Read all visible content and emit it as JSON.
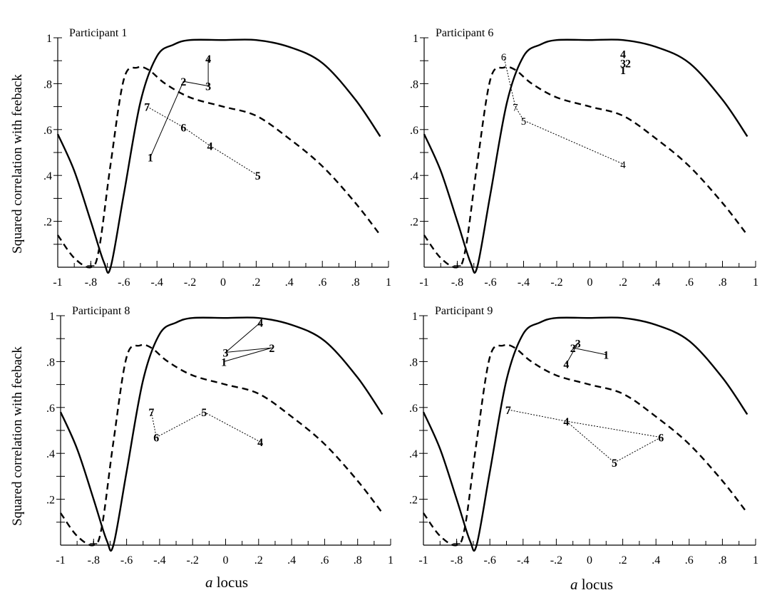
{
  "y_axis_label": "Squared correlation with feeback",
  "x_axis_label_italic": "a",
  "x_axis_label_rest": " locus",
  "chart_data": [
    {
      "type": "line",
      "title": "Participant 1",
      "xlim": [
        -1,
        1
      ],
      "ylim": [
        0,
        1
      ],
      "x_ticks": [
        "-1",
        "-.8",
        "-.6",
        "-.4",
        "-.2",
        "0",
        ".2",
        ".4",
        ".6",
        ".8",
        "1"
      ],
      "y_ticks": [
        ".2",
        ".4",
        ".6",
        ".8",
        "1"
      ],
      "series": [
        {
          "style": "solid",
          "x": [
            -1,
            -0.9,
            -0.8,
            -0.72,
            -0.68,
            -0.6,
            -0.5,
            -0.4,
            -0.3,
            -0.2,
            0,
            0.2,
            0.4,
            0.6,
            0.8,
            0.95
          ],
          "y": [
            0.58,
            0.42,
            0.2,
            0.02,
            0.0,
            0.32,
            0.72,
            0.92,
            0.97,
            0.99,
            0.99,
            0.99,
            0.96,
            0.89,
            0.73,
            0.57
          ]
        },
        {
          "style": "dashed",
          "x": [
            -1,
            -0.9,
            -0.8,
            -0.75,
            -0.68,
            -0.6,
            -0.52,
            -0.45,
            -0.35,
            -0.2,
            0,
            0.2,
            0.4,
            0.6,
            0.8,
            0.95
          ],
          "y": [
            0.14,
            0.04,
            0.0,
            0.08,
            0.45,
            0.82,
            0.87,
            0.86,
            0.8,
            0.74,
            0.7,
            0.66,
            0.56,
            0.44,
            0.28,
            0.14
          ]
        },
        {
          "style": "thin",
          "x": [
            -0.44,
            -0.24,
            -0.09,
            -0.09
          ],
          "y": [
            0.48,
            0.81,
            0.79,
            0.91
          ],
          "labels": [
            "1",
            "2",
            "3",
            "4"
          ]
        },
        {
          "style": "dotted",
          "x": [
            -0.46,
            -0.24,
            -0.08,
            0.21
          ],
          "y": [
            0.7,
            0.61,
            0.53,
            0.4
          ],
          "labels": [
            "7",
            "6",
            "4",
            "5"
          ]
        }
      ],
      "marker": {
        "x": -0.8,
        "y": 0.0
      }
    },
    {
      "type": "line",
      "title": "Participant 6",
      "xlim": [
        -1,
        1
      ],
      "ylim": [
        0,
        1
      ],
      "x_ticks": [
        "-1",
        "-.8",
        "-.6",
        "-.4",
        "-.2",
        "0",
        ".2",
        ".4",
        ".6",
        ".8",
        "1"
      ],
      "y_ticks": [
        ".2",
        ".4",
        ".6",
        ".8",
        "1"
      ],
      "series": [
        {
          "style": "solid",
          "x": [
            -1,
            -0.9,
            -0.8,
            -0.72,
            -0.68,
            -0.6,
            -0.5,
            -0.4,
            -0.3,
            -0.2,
            0,
            0.2,
            0.4,
            0.6,
            0.8,
            0.95
          ],
          "y": [
            0.58,
            0.42,
            0.2,
            0.02,
            0.0,
            0.32,
            0.72,
            0.92,
            0.97,
            0.99,
            0.99,
            0.99,
            0.96,
            0.89,
            0.73,
            0.57
          ]
        },
        {
          "style": "dashed",
          "x": [
            -1,
            -0.9,
            -0.8,
            -0.75,
            -0.68,
            -0.6,
            -0.52,
            -0.45,
            -0.35,
            -0.2,
            0,
            0.2,
            0.4,
            0.6,
            0.8,
            0.95
          ],
          "y": [
            0.14,
            0.04,
            0.0,
            0.08,
            0.45,
            0.82,
            0.87,
            0.86,
            0.8,
            0.74,
            0.7,
            0.66,
            0.56,
            0.44,
            0.28,
            0.14
          ]
        },
        {
          "style": "points",
          "x": [
            0.2,
            0.2,
            0.23,
            0.2
          ],
          "y": [
            0.93,
            0.89,
            0.89,
            0.86
          ],
          "labels": [
            "4",
            "3",
            "2",
            "1"
          ]
        },
        {
          "style": "dotted",
          "x": [
            -0.52,
            -0.45,
            -0.4,
            0.2
          ],
          "y": [
            0.92,
            0.7,
            0.64,
            0.45
          ],
          "labels": [
            "6",
            "7",
            "5",
            "4"
          ]
        }
      ],
      "marker": {
        "x": -0.8,
        "y": 0.0
      }
    },
    {
      "type": "line",
      "title": "Participant 8",
      "xlim": [
        -1,
        1
      ],
      "ylim": [
        0,
        1
      ],
      "x_ticks": [
        "-1",
        "-.8",
        "-.6",
        "-.4",
        "-.2",
        "0",
        ".2",
        ".4",
        ".6",
        ".8",
        "1"
      ],
      "y_ticks": [
        ".2",
        ".4",
        ".6",
        ".8",
        "1"
      ],
      "series": [
        {
          "style": "solid",
          "x": [
            -1,
            -0.9,
            -0.8,
            -0.72,
            -0.68,
            -0.6,
            -0.5,
            -0.4,
            -0.3,
            -0.2,
            0,
            0.2,
            0.4,
            0.6,
            0.8,
            0.95
          ],
          "y": [
            0.58,
            0.42,
            0.2,
            0.02,
            0.0,
            0.32,
            0.72,
            0.92,
            0.97,
            0.99,
            0.99,
            0.99,
            0.96,
            0.89,
            0.73,
            0.57
          ]
        },
        {
          "style": "dashed",
          "x": [
            -1,
            -0.9,
            -0.8,
            -0.75,
            -0.68,
            -0.6,
            -0.52,
            -0.45,
            -0.35,
            -0.2,
            0,
            0.2,
            0.4,
            0.6,
            0.8,
            0.95
          ],
          "y": [
            0.14,
            0.04,
            0.0,
            0.08,
            0.45,
            0.82,
            0.87,
            0.86,
            0.8,
            0.74,
            0.7,
            0.66,
            0.56,
            0.44,
            0.28,
            0.14
          ]
        },
        {
          "style": "thin",
          "x": [
            -0.01,
            0.28,
            0.0,
            0.21
          ],
          "y": [
            0.8,
            0.86,
            0.84,
            0.97
          ],
          "labels": [
            "1",
            "2",
            "3",
            "4"
          ]
        },
        {
          "style": "dotted",
          "x": [
            -0.45,
            -0.42,
            -0.13,
            0.21
          ],
          "y": [
            0.58,
            0.47,
            0.58,
            0.45
          ],
          "labels": [
            "7",
            "6",
            "5",
            "4"
          ]
        }
      ],
      "marker": {
        "x": -0.8,
        "y": 0.0
      }
    },
    {
      "type": "line",
      "title": "Participant 9",
      "xlim": [
        -1,
        1
      ],
      "ylim": [
        0,
        1
      ],
      "x_ticks": [
        "-1",
        "-.8",
        "-.6",
        "-.4",
        "-.2",
        "0",
        ".2",
        ".4",
        ".6",
        ".8",
        "1"
      ],
      "y_ticks": [
        ".2",
        ".4",
        ".6",
        ".8",
        "1"
      ],
      "series": [
        {
          "style": "solid",
          "x": [
            -1,
            -0.9,
            -0.8,
            -0.72,
            -0.68,
            -0.6,
            -0.5,
            -0.4,
            -0.3,
            -0.2,
            0,
            0.2,
            0.4,
            0.6,
            0.8,
            0.95
          ],
          "y": [
            0.58,
            0.42,
            0.2,
            0.02,
            0.0,
            0.32,
            0.72,
            0.92,
            0.97,
            0.99,
            0.99,
            0.99,
            0.96,
            0.89,
            0.73,
            0.57
          ]
        },
        {
          "style": "dashed",
          "x": [
            -1,
            -0.9,
            -0.8,
            -0.75,
            -0.68,
            -0.6,
            -0.52,
            -0.45,
            -0.35,
            -0.2,
            0,
            0.2,
            0.4,
            0.6,
            0.8,
            0.95
          ],
          "y": [
            0.14,
            0.04,
            0.0,
            0.08,
            0.45,
            0.82,
            0.87,
            0.86,
            0.8,
            0.74,
            0.7,
            0.66,
            0.56,
            0.44,
            0.28,
            0.14
          ]
        },
        {
          "style": "thin",
          "x": [
            0.1,
            -0.1,
            -0.07,
            -0.14
          ],
          "y": [
            0.83,
            0.86,
            0.88,
            0.79
          ],
          "labels": [
            "1",
            "2",
            "3",
            "4"
          ]
        },
        {
          "style": "dotted",
          "x": [
            -0.49,
            -0.14,
            0.15,
            0.43,
            -0.14
          ],
          "y": [
            0.59,
            0.54,
            0.36,
            0.47,
            0.54
          ],
          "labels": [
            "7",
            "4",
            "5",
            "6",
            ""
          ]
        }
      ],
      "marker": {
        "x": -0.8,
        "y": 0.0
      }
    }
  ]
}
